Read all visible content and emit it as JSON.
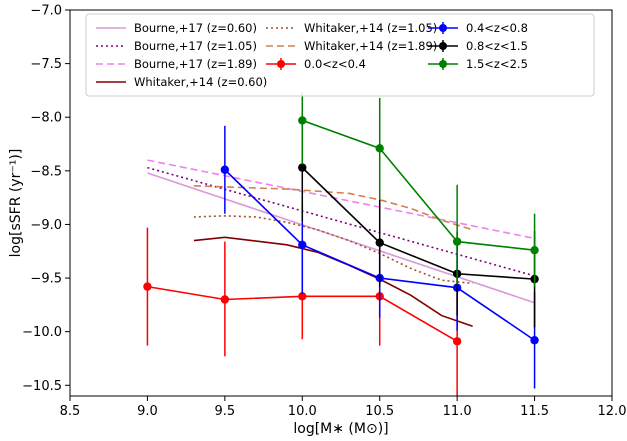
{
  "chart_data": {
    "type": "line",
    "xlabel": "log[M∗ (M⊙)]",
    "ylabel": "log[sSFR (yr⁻¹)]",
    "xlim": [
      8.5,
      12.0
    ],
    "ylim": [
      -10.6,
      -7.0
    ],
    "xticks": [
      "8.5",
      "9.0",
      "9.5",
      "10.0",
      "10.5",
      "11.0",
      "11.5",
      "12.0"
    ],
    "yticks": [
      "−10.5",
      "−10.0",
      "−9.5",
      "−9.0",
      "−8.5",
      "−8.0",
      "−7.5",
      "−7.0"
    ],
    "grid": false,
    "legend_position": "top",
    "series": [
      {
        "name": "Bourne,+17 (z=0.60)",
        "style": "solid",
        "color": "#d99ad9",
        "x": [
          9.0,
          11.5
        ],
        "y": [
          -8.52,
          -9.73
        ]
      },
      {
        "name": "Bourne,+17 (z=1.05)",
        "style": "dotted",
        "color": "#800080",
        "x": [
          9.0,
          11.5
        ],
        "y": [
          -8.47,
          -9.48
        ]
      },
      {
        "name": "Bourne,+17 (z=1.89)",
        "style": "dashed",
        "color": "#ee82ee",
        "x": [
          9.0,
          11.5
        ],
        "y": [
          -8.4,
          -9.13
        ]
      },
      {
        "name": "Whitaker,+14 (z=0.60)",
        "style": "solid",
        "color": "#800000",
        "x": [
          9.3,
          9.5,
          9.9,
          10.1,
          10.3,
          10.5,
          10.7,
          10.9,
          11.1
        ],
        "y": [
          -9.15,
          -9.12,
          -9.19,
          -9.26,
          -9.38,
          -9.51,
          -9.66,
          -9.85,
          -9.95
        ]
      },
      {
        "name": "Whitaker,+14 (z=1.05)",
        "style": "dotted",
        "color": "#a0522d",
        "x": [
          9.3,
          9.5,
          9.7,
          9.9,
          10.1,
          10.3,
          10.5,
          10.7,
          10.9,
          11.1
        ],
        "y": [
          -8.93,
          -8.92,
          -8.93,
          -8.98,
          -9.05,
          -9.15,
          -9.27,
          -9.41,
          -9.52,
          -9.55
        ]
      },
      {
        "name": "Whitaker,+14 (z=1.89)",
        "style": "dashed",
        "color": "#d2804d",
        "x": [
          9.3,
          9.5,
          9.7,
          9.9,
          10.1,
          10.3,
          10.5,
          10.7,
          10.9,
          11.1
        ],
        "y": [
          -8.64,
          -8.65,
          -8.66,
          -8.67,
          -8.69,
          -8.71,
          -8.77,
          -8.85,
          -8.96,
          -9.05
        ]
      },
      {
        "name": "0.0<z<0.4",
        "style": "errorbar",
        "color": "#ff0000",
        "x": [
          9.0,
          9.5,
          10.0,
          10.5,
          11.0
        ],
        "y": [
          -9.58,
          -9.7,
          -9.67,
          -9.67,
          -10.09
        ],
        "ylow": [
          -10.13,
          -10.23,
          -10.07,
          -10.13,
          -10.6
        ],
        "yhigh": [
          -9.03,
          -9.16,
          -9.17,
          -9.21,
          -9.58
        ]
      },
      {
        "name": "0.4<z<0.8",
        "style": "errorbar",
        "color": "#0000ff",
        "x": [
          9.5,
          10.0,
          10.5,
          11.0,
          11.5
        ],
        "y": [
          -8.49,
          -9.19,
          -9.5,
          -9.59,
          -10.08
        ],
        "ylow": [
          -8.9,
          -9.65,
          -9.87,
          -9.99,
          -10.53
        ],
        "yhigh": [
          -8.08,
          -8.79,
          -9.13,
          -9.19,
          -9.63
        ]
      },
      {
        "name": "0.8<z<1.5",
        "style": "errorbar",
        "color": "#000000",
        "x": [
          10.0,
          10.5,
          11.0,
          11.5
        ],
        "y": [
          -8.47,
          -9.17,
          -9.46,
          -9.51
        ],
        "ylow": [
          -8.97,
          -9.58,
          -9.85,
          -9.96
        ],
        "yhigh": [
          -7.96,
          -8.77,
          -9.07,
          -9.06
        ]
      },
      {
        "name": "1.5<z<2.5",
        "style": "errorbar",
        "color": "#008000",
        "x": [
          10.0,
          10.5,
          11.0,
          11.5
        ],
        "y": [
          -8.03,
          -8.29,
          -9.16,
          -9.24
        ],
        "ylow": [
          -8.44,
          -8.77,
          -9.56,
          -9.58
        ],
        "yhigh": [
          -7.77,
          -7.82,
          -8.63,
          -8.9
        ]
      }
    ]
  }
}
